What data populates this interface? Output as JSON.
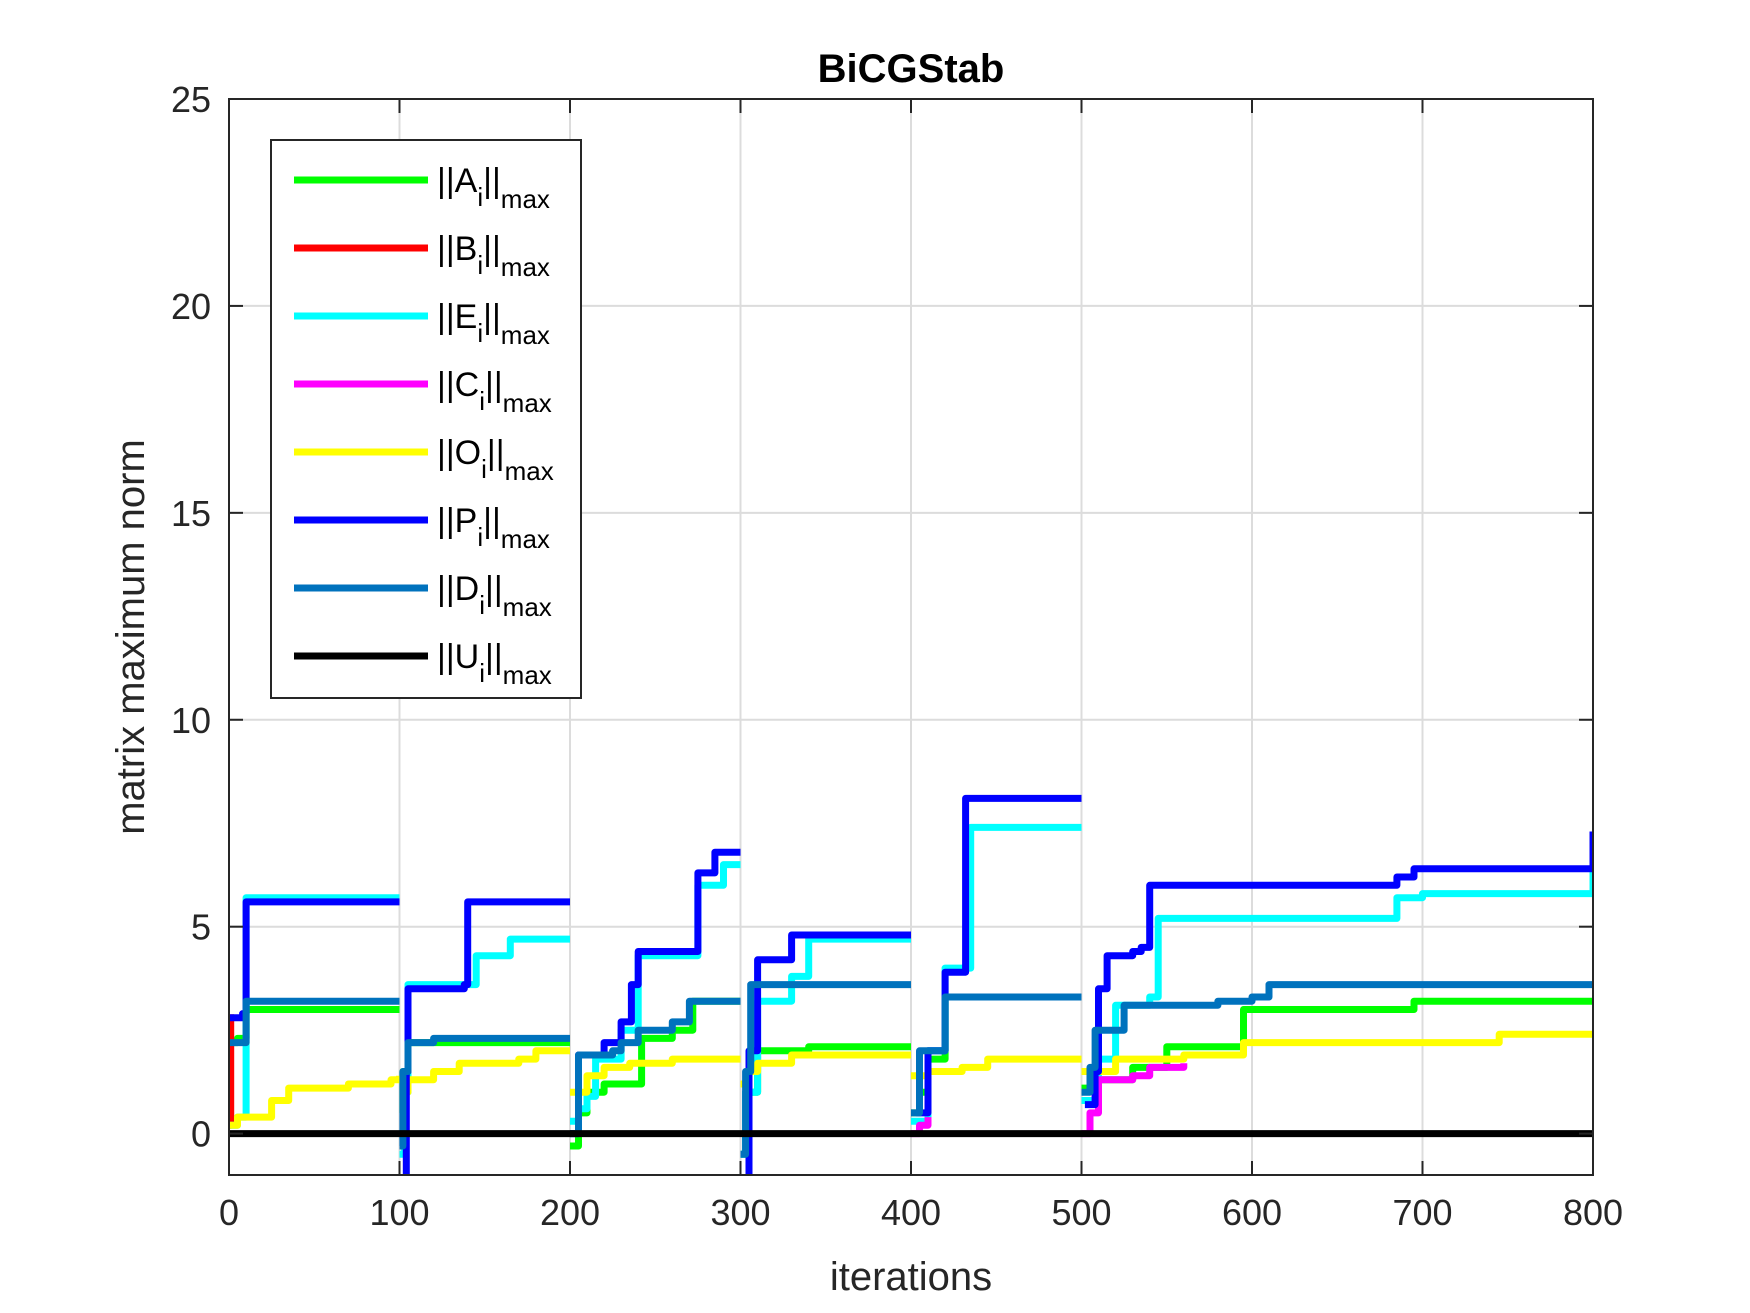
{
  "chart_data": {
    "type": "line",
    "title": "BiCGStab",
    "xlabel": "iterations",
    "ylabel": "matrix maximum norm",
    "xlim": [
      0,
      800
    ],
    "ylim": [
      -1,
      25
    ],
    "xticks": [
      "0",
      "100",
      "200",
      "300",
      "400",
      "500",
      "600",
      "700",
      "800"
    ],
    "yticks": [
      "0",
      "5",
      "10",
      "15",
      "20",
      "25"
    ],
    "grid": true,
    "legend_position": "top-left",
    "series": [
      {
        "name": "||Ai||max",
        "label_main": "||A",
        "label_sub": "i",
        "label_tail": "||",
        "label_sup": "max",
        "color": "#00ff00",
        "segments": [
          [
            [
              0,
              2.2
            ],
            [
              5,
              2.3
            ],
            [
              10,
              3.0
            ],
            [
              100,
              3.0
            ]
          ],
          [
            [
              100,
              0.5
            ],
            [
              102,
              1.5
            ],
            [
              105,
              2.2
            ],
            [
              200,
              2.2
            ]
          ],
          [
            [
              200,
              -0.3
            ],
            [
              205,
              0.5
            ],
            [
              210,
              1.0
            ],
            [
              220,
              1.2
            ],
            [
              240,
              1.2
            ],
            [
              242,
              2.3
            ],
            [
              260,
              2.5
            ],
            [
              270,
              2.5
            ],
            [
              272,
              3.2
            ],
            [
              300,
              3.2
            ]
          ],
          [
            [
              300,
              -0.5
            ],
            [
              303,
              1.0
            ],
            [
              310,
              2.0
            ],
            [
              340,
              2.1
            ],
            [
              400,
              2.1
            ]
          ],
          [
            [
              400,
              0.5
            ],
            [
              405,
              1.0
            ],
            [
              410,
              1.8
            ],
            [
              420,
              3.3
            ],
            [
              500,
              3.3
            ]
          ],
          [
            [
              500,
              1.1
            ],
            [
              510,
              1.3
            ],
            [
              530,
              1.6
            ],
            [
              550,
              2.1
            ],
            [
              590,
              2.1
            ],
            [
              595,
              3.0
            ],
            [
              690,
              3.0
            ],
            [
              695,
              3.2
            ],
            [
              800,
              3.2
            ]
          ]
        ]
      },
      {
        "name": "||Bi||max",
        "label_main": "||B",
        "label_sub": "i",
        "label_tail": "||",
        "label_sup": "max",
        "color": "#ff0000",
        "segments": [
          [
            [
              0,
              0.2
            ],
            [
              1,
              2.8
            ],
            [
              3,
              2.8
            ]
          ]
        ]
      },
      {
        "name": "||Ei||max",
        "label_main": "||E",
        "label_sub": "i",
        "label_tail": "||",
        "label_sup": "max",
        "color": "#00ffff",
        "segments": [
          [
            [
              0,
              0.2
            ],
            [
              5,
              0.4
            ],
            [
              10,
              5.7
            ],
            [
              100,
              5.7
            ]
          ],
          [
            [
              100,
              -0.5
            ],
            [
              103,
              1.0
            ],
            [
              105,
              3.6
            ],
            [
              140,
              3.6
            ],
            [
              145,
              4.3
            ],
            [
              160,
              4.3
            ],
            [
              165,
              4.7
            ],
            [
              200,
              4.7
            ]
          ],
          [
            [
              200,
              0.3
            ],
            [
              205,
              0.6
            ],
            [
              210,
              0.9
            ],
            [
              215,
              1.8
            ],
            [
              230,
              2.5
            ],
            [
              240,
              4.3
            ],
            [
              270,
              4.3
            ],
            [
              275,
              6.0
            ],
            [
              290,
              6.5
            ],
            [
              300,
              6.5
            ]
          ],
          [
            [
              300,
              -0.5
            ],
            [
              303,
              1.0
            ],
            [
              310,
              3.2
            ],
            [
              325,
              3.2
            ],
            [
              330,
              3.8
            ],
            [
              340,
              4.7
            ],
            [
              400,
              4.7
            ]
          ],
          [
            [
              400,
              0.3
            ],
            [
              410,
              2.0
            ],
            [
              420,
              4.0
            ],
            [
              430,
              4.0
            ],
            [
              435,
              7.4
            ],
            [
              500,
              7.4
            ]
          ],
          [
            [
              500,
              0.8
            ],
            [
              510,
              1.8
            ],
            [
              520,
              3.1
            ],
            [
              540,
              3.3
            ],
            [
              545,
              5.2
            ],
            [
              680,
              5.2
            ],
            [
              685,
              5.7
            ],
            [
              700,
              5.8
            ],
            [
              790,
              5.8
            ],
            [
              800,
              7.0
            ]
          ]
        ]
      },
      {
        "name": "||Ci||max",
        "label_main": "||C",
        "label_sub": "i",
        "label_tail": "||",
        "label_sup": "max",
        "color": "#ff00ff",
        "segments": [
          [
            [
              400,
              0.0
            ],
            [
              405,
              0.2
            ],
            [
              410,
              0.4
            ]
          ],
          [
            [
              500,
              0.0
            ],
            [
              505,
              0.5
            ],
            [
              510,
              1.3
            ],
            [
              530,
              1.4
            ],
            [
              540,
              1.6
            ],
            [
              560,
              1.7
            ]
          ]
        ]
      },
      {
        "name": "||Oi||max",
        "label_main": "||O",
        "label_sub": "i",
        "label_tail": "||",
        "label_sup": "max",
        "color": "#ffff00",
        "segments": [
          [
            [
              0,
              0.2
            ],
            [
              5,
              0.4
            ],
            [
              15,
              0.4
            ],
            [
              25,
              0.8
            ],
            [
              35,
              1.1
            ],
            [
              70,
              1.2
            ],
            [
              95,
              1.3
            ],
            [
              100,
              1.4
            ]
          ],
          [
            [
              100,
              1.0
            ],
            [
              105,
              1.3
            ],
            [
              120,
              1.5
            ],
            [
              135,
              1.7
            ],
            [
              170,
              1.8
            ],
            [
              180,
              2.0
            ],
            [
              200,
              2.0
            ]
          ],
          [
            [
              200,
              1.0
            ],
            [
              210,
              1.4
            ],
            [
              220,
              1.6
            ],
            [
              235,
              1.7
            ],
            [
              260,
              1.8
            ],
            [
              300,
              1.8
            ]
          ],
          [
            [
              300,
              1.2
            ],
            [
              305,
              1.5
            ],
            [
              310,
              1.7
            ],
            [
              330,
              1.9
            ],
            [
              400,
              1.9
            ]
          ],
          [
            [
              400,
              1.4
            ],
            [
              410,
              1.5
            ],
            [
              430,
              1.6
            ],
            [
              445,
              1.8
            ],
            [
              500,
              1.8
            ]
          ],
          [
            [
              500,
              1.5
            ],
            [
              520,
              1.8
            ],
            [
              560,
              1.9
            ],
            [
              590,
              1.9
            ],
            [
              595,
              2.2
            ],
            [
              740,
              2.2
            ],
            [
              745,
              2.4
            ],
            [
              800,
              2.4
            ]
          ]
        ]
      },
      {
        "name": "||Pi||max",
        "label_main": "||P",
        "label_sub": "i",
        "label_tail": "||",
        "label_sup": "max",
        "color": "#0000ff",
        "segments": [
          [
            [
              0,
              2.8
            ],
            [
              8,
              2.9
            ],
            [
              10,
              5.6
            ],
            [
              100,
              5.6
            ]
          ],
          [
            [
              102,
              -1.0
            ],
            [
              104,
              1.5
            ],
            [
              105,
              3.5
            ],
            [
              138,
              3.6
            ],
            [
              140,
              5.6
            ],
            [
              200,
              5.6
            ]
          ],
          [
            [
              200,
              0.0
            ],
            [
              205,
              1.9
            ],
            [
              215,
              1.9
            ],
            [
              220,
              2.2
            ],
            [
              230,
              2.7
            ],
            [
              236,
              3.6
            ],
            [
              240,
              4.4
            ],
            [
              270,
              4.4
            ],
            [
              275,
              6.3
            ],
            [
              285,
              6.8
            ],
            [
              300,
              6.8
            ]
          ],
          [
            [
              303,
              -1.0
            ],
            [
              305,
              2.0
            ],
            [
              310,
              4.2
            ],
            [
              325,
              4.2
            ],
            [
              330,
              4.8
            ],
            [
              400,
              4.8
            ]
          ],
          [
            [
              403,
              0.5
            ],
            [
              410,
              2.0
            ],
            [
              420,
              3.9
            ],
            [
              430,
              3.9
            ],
            [
              432,
              8.1
            ],
            [
              500,
              8.1
            ]
          ],
          [
            [
              502,
              0.7
            ],
            [
              508,
              1.5
            ],
            [
              510,
              3.5
            ],
            [
              515,
              4.3
            ],
            [
              530,
              4.4
            ],
            [
              535,
              4.5
            ],
            [
              540,
              6.0
            ],
            [
              680,
              6.0
            ],
            [
              685,
              6.2
            ],
            [
              695,
              6.4
            ],
            [
              795,
              6.4
            ],
            [
              800,
              7.3
            ]
          ]
        ]
      },
      {
        "name": "||Di||max",
        "label_main": "||D",
        "label_sub": "i",
        "label_tail": "||",
        "label_sup": "max",
        "color": "#0072bd",
        "segments": [
          [
            [
              0,
              2.2
            ],
            [
              5,
              2.2
            ],
            [
              10,
              3.2
            ],
            [
              100,
              3.2
            ]
          ],
          [
            [
              100,
              -0.3
            ],
            [
              102,
              1.5
            ],
            [
              105,
              2.2
            ],
            [
              120,
              2.3
            ],
            [
              200,
              2.3
            ]
          ],
          [
            [
              200,
              0.0
            ],
            [
              205,
              1.9
            ],
            [
              225,
              2.0
            ],
            [
              230,
              2.2
            ],
            [
              240,
              2.5
            ],
            [
              260,
              2.7
            ],
            [
              270,
              3.2
            ],
            [
              300,
              3.2
            ]
          ],
          [
            [
              300,
              -0.5
            ],
            [
              303,
              1.5
            ],
            [
              306,
              3.6
            ],
            [
              400,
              3.6
            ]
          ],
          [
            [
              400,
              0.5
            ],
            [
              405,
              2.0
            ],
            [
              415,
              2.0
            ],
            [
              420,
              3.3
            ],
            [
              500,
              3.3
            ]
          ],
          [
            [
              500,
              1.0
            ],
            [
              505,
              1.6
            ],
            [
              508,
              2.5
            ],
            [
              525,
              3.1
            ],
            [
              580,
              3.2
            ],
            [
              600,
              3.3
            ],
            [
              610,
              3.6
            ],
            [
              800,
              3.6
            ]
          ]
        ]
      },
      {
        "name": "||Ui||max",
        "label_main": "||U",
        "label_sub": "i",
        "label_tail": "||",
        "label_sup": "max",
        "color": "#000000",
        "segments": [
          [
            [
              0,
              0
            ],
            [
              800,
              0
            ]
          ]
        ]
      }
    ]
  }
}
